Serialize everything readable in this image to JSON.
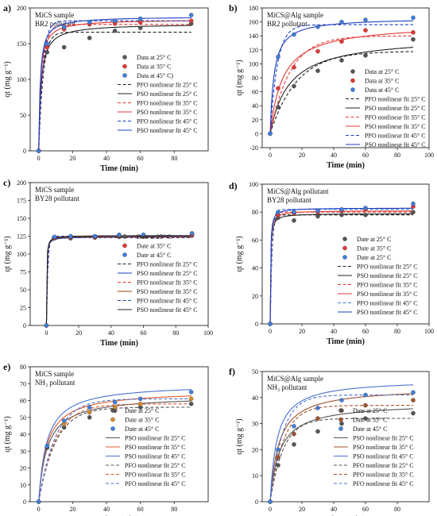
{
  "chart_data": [
    {
      "type": "scatter",
      "panel_label": "a)",
      "title_lines": [
        "MiCS sample",
        "BR2 pollutant"
      ],
      "xlabel": "Time (min)",
      "ylabel": "qt (mg g⁻¹)",
      "xlim": [
        -5,
        100
      ],
      "ylim": [
        0,
        200
      ],
      "xticks": [
        "0",
        "20",
        "40",
        "60",
        "80"
      ],
      "yticks": [
        "0",
        "50",
        "100",
        "150",
        "200"
      ],
      "series": [
        {
          "name": "Data at 25° C",
          "color": "#555555",
          "x": [
            0,
            5,
            15,
            30,
            45,
            60,
            90
          ],
          "y": [
            0,
            138,
            145,
            158,
            168,
            172,
            178
          ]
        },
        {
          "name": "Data at 35° C",
          "color": "#e53935",
          "x": [
            0,
            5,
            15,
            30,
            45,
            60,
            90
          ],
          "y": [
            0,
            145,
            170,
            177,
            178,
            180,
            182
          ]
        },
        {
          "name": "Data at 45° C)",
          "color": "#3f7fdc",
          "x": [
            0,
            5,
            15,
            30,
            45,
            60,
            90
          ],
          "y": [
            0,
            150,
            173,
            180,
            182,
            185,
            190
          ]
        }
      ],
      "fits": [
        {
          "name": "PFO nonlinear fit 25° C",
          "color": "#222222",
          "dash": true,
          "model": "pfo",
          "qe": 166,
          "k": 0.38
        },
        {
          "name": "PSO nonlinear fit 25° C",
          "color": "#222222",
          "dash": false,
          "model": "pso",
          "qe": 178,
          "k": 0.0042
        },
        {
          "name": "PFO nonlinear fit 35° C",
          "color": "#e53935",
          "dash": true,
          "model": "pfo",
          "qe": 177,
          "k": 0.4
        },
        {
          "name": "PSO nonlinear fit 35° C",
          "color": "#e53935",
          "dash": false,
          "model": "pso",
          "qe": 184,
          "k": 0.0055
        },
        {
          "name": "PFO nonlinear fit 45° C",
          "color": "#1e3fbf",
          "dash": true,
          "model": "pfo",
          "qe": 182,
          "k": 0.42
        },
        {
          "name": "PSO nonlinear fit 45° C",
          "color": "#1e3fbf",
          "dash": false,
          "model": "pso",
          "qe": 188,
          "k": 0.006
        }
      ]
    },
    {
      "type": "scatter",
      "panel_label": "b)",
      "title_lines": [
        "MiCS@Alg sample",
        "BR2 pollutant"
      ],
      "xlabel": "Time (min)",
      "ylabel": "qt (mg g⁻¹)",
      "xlim": [
        -5,
        100
      ],
      "ylim": [
        -20,
        180
      ],
      "xticks": [
        "0",
        "20",
        "40",
        "60",
        "80",
        "100"
      ],
      "yticks": [
        "-20",
        "0",
        "20",
        "40",
        "60",
        "80",
        "100",
        "120",
        "140",
        "160",
        "180"
      ],
      "series": [
        {
          "name": "Data at 25° C",
          "color": "#555555",
          "x": [
            0,
            5,
            15,
            30,
            45,
            60,
            90
          ],
          "y": [
            0,
            38,
            68,
            90,
            105,
            112,
            135
          ]
        },
        {
          "name": "Data at 35° C",
          "color": "#e53935",
          "x": [
            0,
            5,
            15,
            30,
            45,
            60,
            90
          ],
          "y": [
            0,
            65,
            95,
            118,
            132,
            148,
            145
          ]
        },
        {
          "name": "Data at 45° C",
          "color": "#3f7fdc",
          "x": [
            0,
            5,
            15,
            30,
            45,
            60,
            90
          ],
          "y": [
            0,
            110,
            142,
            153,
            160,
            163,
            166
          ]
        }
      ],
      "fits": [
        {
          "name": "PFO nonlinear fit 25° C",
          "color": "#222222",
          "dash": true,
          "model": "pfo",
          "qe": 118,
          "k": 0.06
        },
        {
          "name": "PSO nonlinear fit 25° C",
          "color": "#222222",
          "dash": false,
          "model": "pso",
          "qe": 140,
          "k": 0.0006
        },
        {
          "name": "PFO nonlinear fit 35° C",
          "color": "#e53935",
          "dash": true,
          "model": "pfo",
          "qe": 140,
          "k": 0.08
        },
        {
          "name": "PSO nonlinear fit 35° C",
          "color": "#e53935",
          "dash": false,
          "model": "pso",
          "qe": 158,
          "k": 0.0008
        },
        {
          "name": "PFO nonlinear fit 45° C",
          "color": "#1e3fbf",
          "dash": true,
          "model": "pfo",
          "qe": 156,
          "k": 0.22
        },
        {
          "name": "PSO nonlinear fit 45° C",
          "color": "#1e3fbf",
          "dash": false,
          "model": "pso",
          "qe": 166,
          "k": 0.0025
        }
      ]
    },
    {
      "type": "scatter",
      "panel_label": "c)",
      "title_lines": [
        "MiCS sample",
        "BY28 pollutant"
      ],
      "xlabel": "Time (min)",
      "ylabel": "qt (mg g⁻¹)",
      "xlim": [
        -10,
        100
      ],
      "ylim": [
        0,
        200
      ],
      "xticks": [
        "0",
        "20",
        "40",
        "60",
        "80",
        "100"
      ],
      "yticks": [
        "0",
        "25",
        "50",
        "75",
        "100",
        "125",
        "150",
        "175",
        "200"
      ],
      "series": [
        {
          "name": "Date at 25° C",
          "color": "#555555",
          "x": [
            0,
            5,
            15,
            30,
            45,
            60,
            90
          ],
          "y": [
            0,
            122,
            122,
            123,
            124,
            125,
            126
          ]
        },
        {
          "name": "Date at 35° C",
          "color": "#e53935",
          "x": [
            0,
            5,
            15,
            30,
            45,
            60,
            90
          ],
          "y": [
            0,
            123,
            124,
            124,
            126,
            126,
            127
          ]
        },
        {
          "name": "Date at 45° C",
          "color": "#3f7fdc",
          "x": [
            0,
            5,
            15,
            30,
            45,
            60,
            90
          ],
          "y": [
            0,
            124,
            125,
            125,
            127,
            127,
            129
          ]
        }
      ],
      "fits": [
        {
          "name": "PFO nonlinear fit 25° C",
          "color": "#222222",
          "dash": true,
          "model": "pfo",
          "qe": 123,
          "k": 1.2
        },
        {
          "name": "PSO nonlinear fit 25° C",
          "color": "#1e3fbf",
          "dash": false,
          "model": "pso",
          "qe": 124,
          "k": 0.05
        },
        {
          "name": "PFO nonlinear fit 35° C",
          "color": "#e53935",
          "dash": true,
          "model": "pfo",
          "qe": 124,
          "k": 1.2
        },
        {
          "name": "PSO nonlinear fit 35° C",
          "color": "#8b4513",
          "dash": false,
          "model": "pso",
          "qe": 125,
          "k": 0.05
        },
        {
          "name": "PFO nonlinear fit 45° C",
          "color": "#1e3fbf",
          "dash": true,
          "model": "pfo",
          "qe": 125,
          "k": 1.2
        },
        {
          "name": "PSO nonlinear fit 45° C",
          "color": "#222222",
          "dash": false,
          "model": "pso",
          "qe": 126,
          "k": 0.05
        }
      ]
    },
    {
      "type": "scatter",
      "panel_label": "d)",
      "title_lines": [
        "MiCS@Alg pollutant",
        "BY28 pollutant"
      ],
      "xlabel": "Time (min)",
      "ylabel": "qt (mg g⁻¹)",
      "xlim": [
        -5,
        100
      ],
      "ylim": [
        0,
        100
      ],
      "xticks": [
        "0",
        "20",
        "40",
        "60",
        "80",
        "100"
      ],
      "yticks": [
        "0",
        "20",
        "40",
        "60",
        "80",
        "100"
      ],
      "series": [
        {
          "name": "Date at 25° C",
          "color": "#555555",
          "x": [
            0,
            5,
            15,
            30,
            45,
            60,
            90
          ],
          "y": [
            0,
            76,
            74,
            77,
            78,
            78,
            80
          ]
        },
        {
          "name": "Date at 35° C",
          "color": "#e53935",
          "x": [
            0,
            5,
            15,
            30,
            45,
            60,
            90
          ],
          "y": [
            0,
            78,
            79,
            80,
            81,
            82,
            84
          ]
        },
        {
          "name": "Date at 25° C",
          "color": "#3f7fdc",
          "x": [
            0,
            5,
            15,
            30,
            45,
            60,
            90
          ],
          "y": [
            0,
            80,
            80,
            81,
            82,
            83,
            86
          ]
        }
      ],
      "fits": [
        {
          "name": "PFO nonlinear fit 25° C",
          "color": "#222222",
          "dash": true,
          "model": "pfo",
          "qe": 78,
          "k": 0.9
        },
        {
          "name": "PSO nonlinear fit 25° C",
          "color": "#222222",
          "dash": false,
          "model": "pso",
          "qe": 79,
          "k": 0.05
        },
        {
          "name": "PFO nonlinear fit 35° C",
          "color": "#e53935",
          "dash": true,
          "model": "pfo",
          "qe": 80,
          "k": 0.9
        },
        {
          "name": "PSO nonlinear fit 35° C",
          "color": "#e53935",
          "dash": false,
          "model": "pso",
          "qe": 81,
          "k": 0.05
        },
        {
          "name": "PFO nonlinear fit 45° C",
          "color": "#3f7fdc",
          "dash": true,
          "model": "pfo",
          "qe": 82,
          "k": 0.9
        },
        {
          "name": "PSO nonlinear fit 45° C",
          "color": "#1e3fbf",
          "dash": false,
          "model": "pso",
          "qe": 83,
          "k": 0.05
        }
      ]
    },
    {
      "type": "scatter",
      "panel_label": "e)",
      "title_lines": [
        "MiCS sample",
        "NH₃ pollutant"
      ],
      "xlabel": "Time (min)",
      "ylabel": "qt (mg g⁻¹)",
      "xlim": [
        -5,
        100
      ],
      "ylim": [
        0,
        80
      ],
      "xticks": [
        "0",
        "20",
        "40",
        "60",
        "80"
      ],
      "yticks": [
        "0",
        "10",
        "20",
        "30",
        "40",
        "50",
        "60",
        "70",
        "80"
      ],
      "series": [
        {
          "name": "Date at 25° C",
          "color": "#555555",
          "x": [
            0,
            5,
            15,
            30,
            45,
            60,
            90
          ],
          "y": [
            0,
            32,
            44,
            50,
            54,
            56,
            58
          ]
        },
        {
          "name": "Date at 35° C",
          "color": "#d98c2b",
          "x": [
            0,
            5,
            15,
            30,
            45,
            60,
            90
          ],
          "y": [
            0,
            33,
            46,
            53,
            56,
            58,
            61
          ]
        },
        {
          "name": "Date at 45° C",
          "color": "#3f7fdc",
          "x": [
            0,
            5,
            15,
            30,
            45,
            60,
            90
          ],
          "y": [
            0,
            33,
            48,
            56,
            59,
            61,
            65
          ]
        }
      ],
      "fits": [
        {
          "name": "PSO nonlinear fit 25° C",
          "color": "#555555",
          "dash": false,
          "model": "pso",
          "qe": 63,
          "k": 0.0032
        },
        {
          "name": "PSO nonlinear fit 35° C",
          "color": "#e05a2b",
          "dash": false,
          "model": "pso",
          "qe": 66,
          "k": 0.0032
        },
        {
          "name": "PSO nonlinear fit 45° C",
          "color": "#4a6fd1",
          "dash": false,
          "model": "pso",
          "qe": 70,
          "k": 0.003
        },
        {
          "name": "PFO nonlinear fit 25° C",
          "color": "#555555",
          "dash": true,
          "model": "pfo",
          "qe": 56,
          "k": 0.1
        },
        {
          "name": "PFO nonlinear fit 35° C",
          "color": "#e05a2b",
          "dash": true,
          "model": "pfo",
          "qe": 58,
          "k": 0.1
        },
        {
          "name": "PFO nonlinear fit 45° C",
          "color": "#4a6fd1",
          "dash": true,
          "model": "pfo",
          "qe": 61,
          "k": 0.1
        }
      ]
    },
    {
      "type": "scatter",
      "panel_label": "f)",
      "title_lines": [
        "MiCS@Alg sample",
        "NH₃ pollutant"
      ],
      "xlabel": "Time (min)",
      "ylabel": "qt (mg g⁻¹)",
      "xlim": [
        -5,
        100
      ],
      "ylim": [
        0,
        50
      ],
      "xticks": [
        "0",
        "20",
        "40",
        "60",
        "80"
      ],
      "yticks": [
        "0",
        "10",
        "20",
        "30",
        "40",
        "50"
      ],
      "series": [
        {
          "name": "Date at 25° C",
          "color": "#555555",
          "x": [
            0,
            5,
            15,
            30,
            45,
            60,
            90
          ],
          "y": [
            0,
            14,
            22,
            27,
            30,
            32,
            34
          ]
        },
        {
          "name": "Date at 35° C",
          "color": "#a0522d",
          "x": [
            0,
            5,
            15,
            30,
            45,
            60,
            90
          ],
          "y": [
            0,
            17,
            26,
            32,
            35,
            37,
            39
          ]
        },
        {
          "name": "Date at 45° C",
          "color": "#3f7fdc",
          "x": [
            0,
            5,
            15,
            30,
            45,
            60,
            90
          ],
          "y": [
            0,
            20,
            29,
            36,
            39,
            41,
            42
          ]
        }
      ],
      "fits": [
        {
          "name": "PSO nonlinear fit 25° C",
          "color": "#555555",
          "dash": false,
          "model": "pso",
          "qe": 38,
          "k": 0.0045
        },
        {
          "name": "PSO nonlinear fit 35° C",
          "color": "#a0522d",
          "dash": false,
          "model": "pso",
          "qe": 44,
          "k": 0.0042
        },
        {
          "name": "PSO nonlinear fit 45° C",
          "color": "#4a6fd1",
          "dash": false,
          "model": "pso",
          "qe": 47,
          "k": 0.005
        },
        {
          "name": "PFO nonlinear fit 25° C",
          "color": "#555555",
          "dash": true,
          "model": "pfo",
          "qe": 32,
          "k": 0.12
        },
        {
          "name": "PFO nonlinear fit 35° C",
          "color": "#a0522d",
          "dash": true,
          "model": "pfo",
          "qe": 37,
          "k": 0.12
        },
        {
          "name": "PFO nonlinear fit 45° C",
          "color": "#4a6fd1",
          "dash": true,
          "model": "pfo",
          "qe": 41,
          "k": 0.13
        }
      ]
    }
  ]
}
